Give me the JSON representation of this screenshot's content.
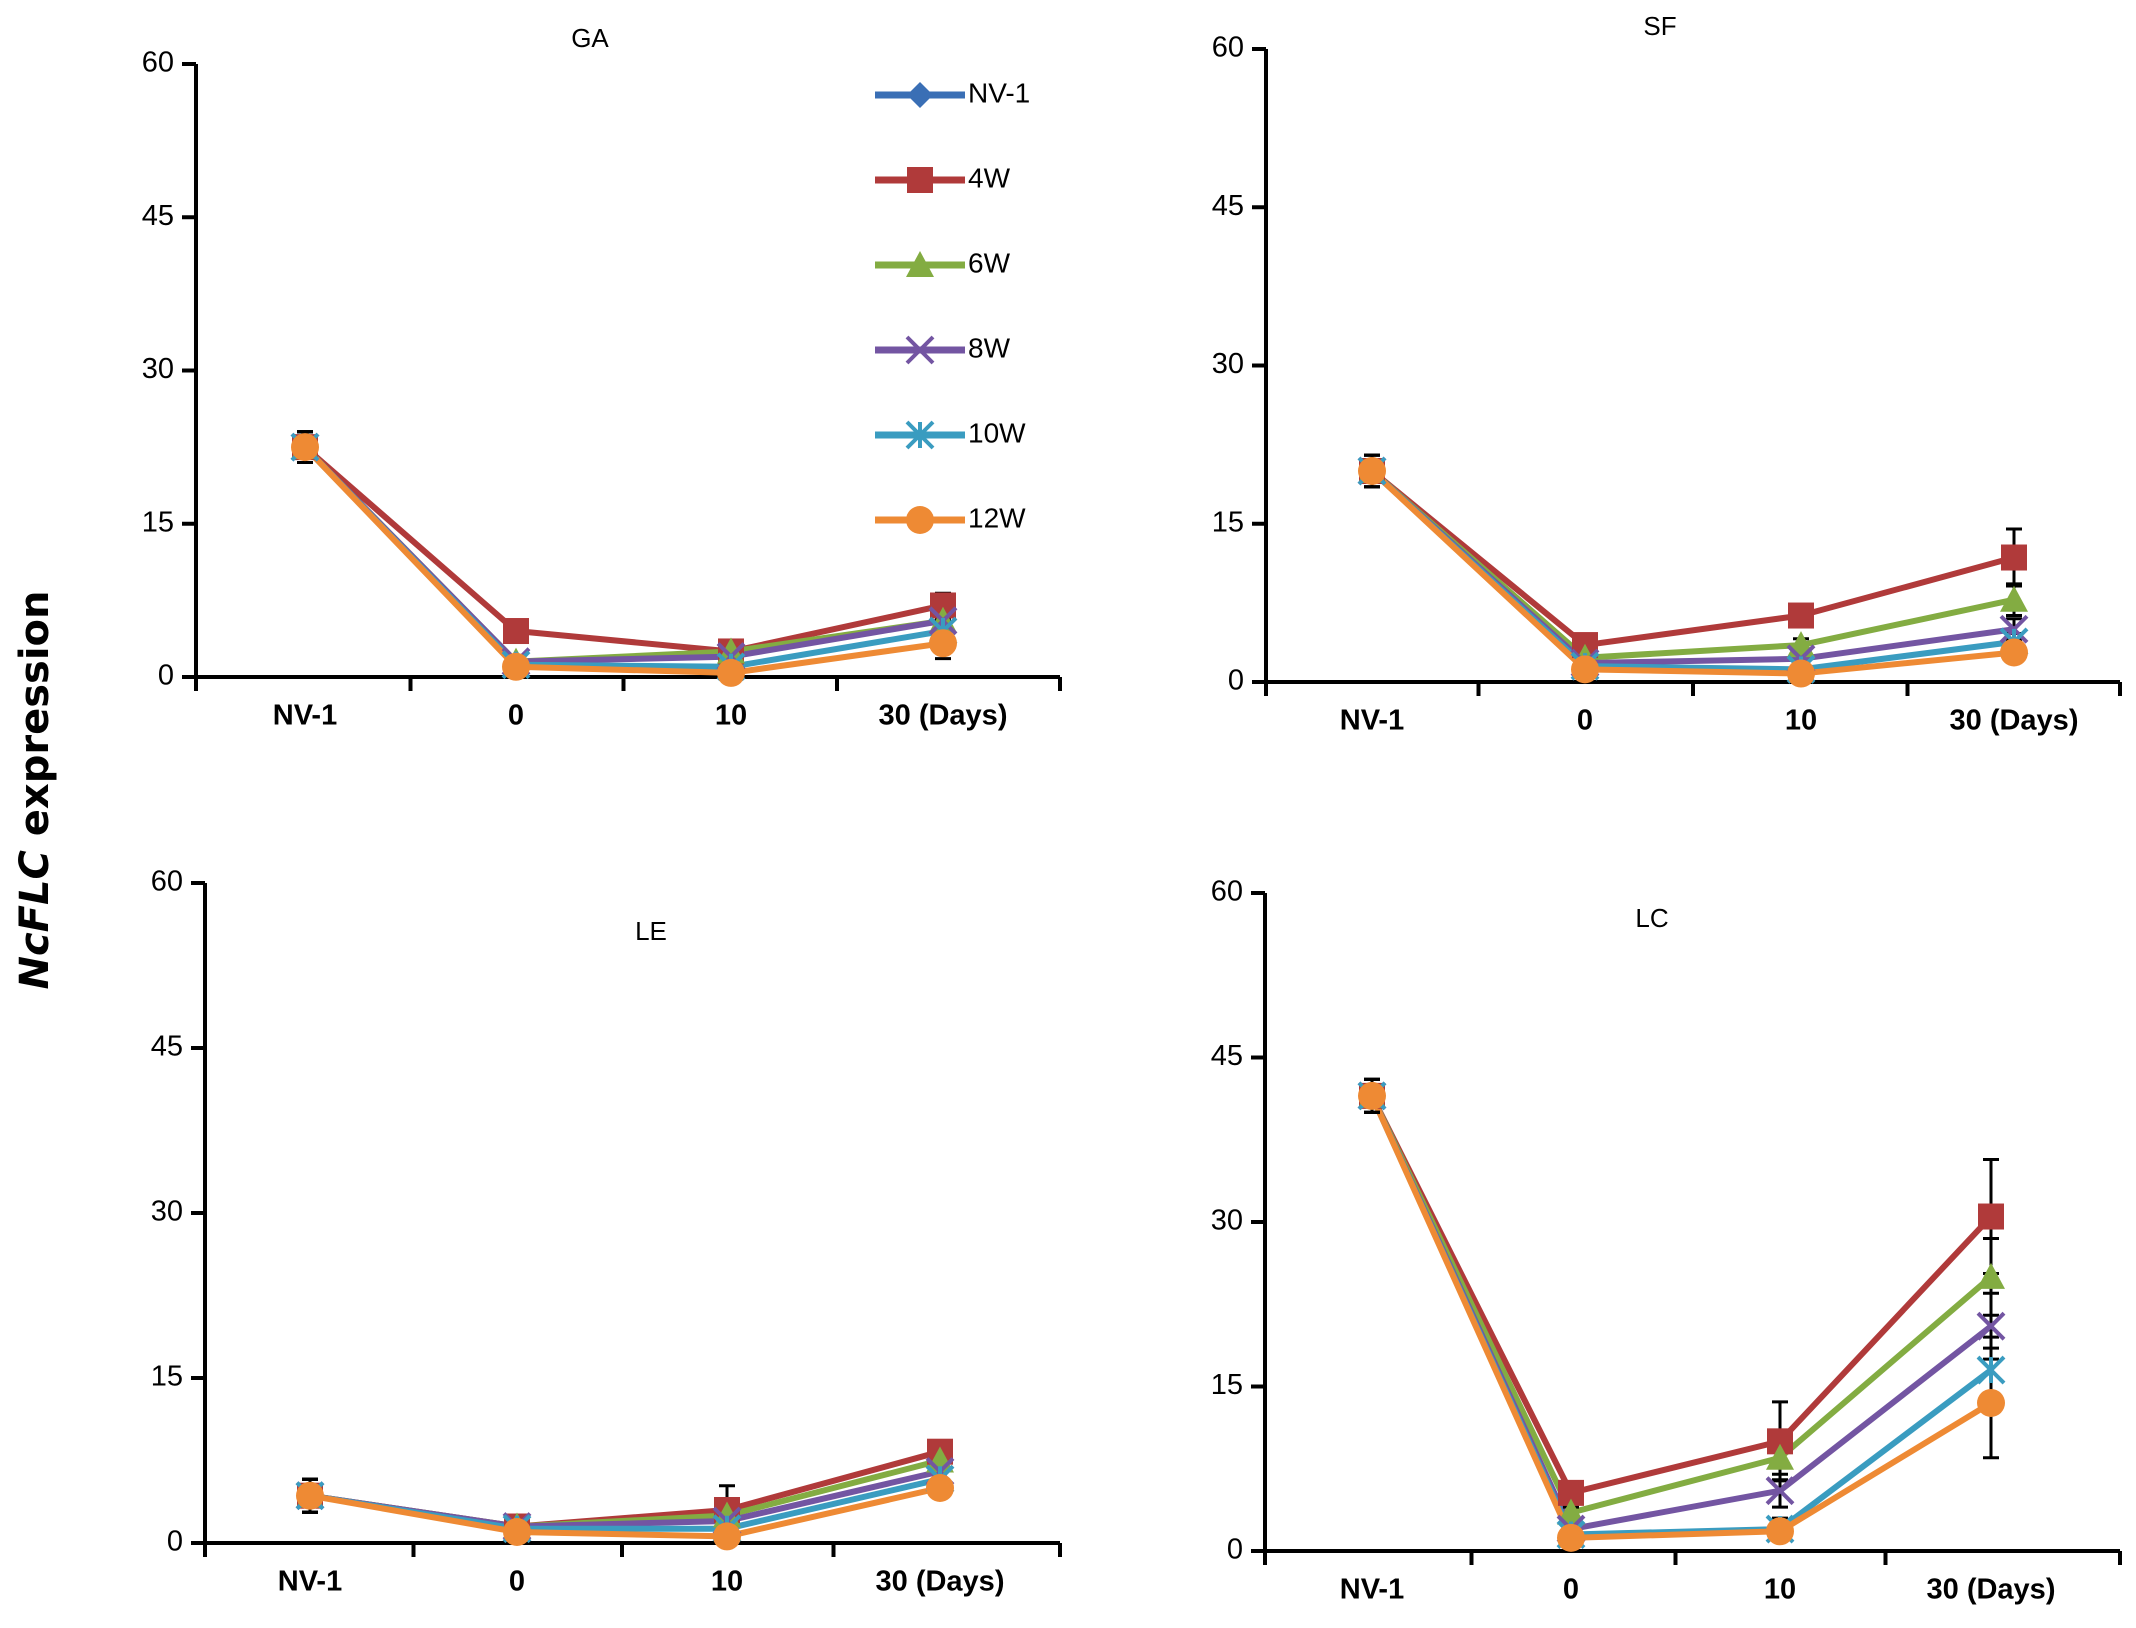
{
  "figure": {
    "y_axis_title_italic": "NcFLC",
    "y_axis_title_rest": " expression"
  },
  "chart_data": [
    {
      "type": "line",
      "title": "GA",
      "categories": [
        "NV-1",
        "0",
        "10",
        "30 (Days)"
      ],
      "xlabel": "",
      "ylabel": "NcFLC expression",
      "ylim": [
        0,
        60
      ],
      "yticks": [
        "0",
        "15",
        "30",
        "45",
        "60"
      ],
      "legend": "top-right",
      "series": [
        {
          "name": "NV-1",
          "values": [
            22.5,
            null,
            null,
            null
          ],
          "err": [
            1.5,
            null,
            null,
            null
          ]
        },
        {
          "name": "4W",
          "values": [
            22.5,
            4.5,
            2.5,
            7.0
          ],
          "err": [
            1.5,
            0.6,
            0.4,
            1.2
          ]
        },
        {
          "name": "6W",
          "values": [
            22.5,
            1.5,
            2.5,
            5.5
          ],
          "err": [
            1.5,
            0.3,
            0.4,
            1.0
          ]
        },
        {
          "name": "8W",
          "values": [
            22.5,
            1.5,
            2.0,
            5.5
          ],
          "err": [
            1.5,
            0.3,
            0.4,
            1.0
          ]
        },
        {
          "name": "10W",
          "values": [
            22.5,
            1.2,
            1.0,
            4.5
          ],
          "err": [
            1.5,
            0.3,
            0.3,
            1.0
          ]
        },
        {
          "name": "12W",
          "values": [
            22.5,
            1.0,
            0.4,
            3.3
          ],
          "err": [
            1.5,
            0.3,
            0.2,
            1.5
          ]
        }
      ]
    },
    {
      "type": "line",
      "title": "SF",
      "categories": [
        "NV-1",
        "0",
        "10",
        "30 (Days)"
      ],
      "xlabel": "",
      "ylabel": "NcFLC expression",
      "ylim": [
        0,
        60
      ],
      "yticks": [
        "0",
        "15",
        "30",
        "45",
        "60"
      ],
      "series": [
        {
          "name": "NV-1",
          "values": [
            20.0,
            null,
            null,
            null
          ],
          "err": [
            1.5,
            null,
            null,
            null
          ]
        },
        {
          "name": "4W",
          "values": [
            20.0,
            3.5,
            6.3,
            11.8
          ],
          "err": [
            1.5,
            0.6,
            0.8,
            2.7
          ]
        },
        {
          "name": "6W",
          "values": [
            20.0,
            2.3,
            3.5,
            7.8
          ],
          "err": [
            1.5,
            0.4,
            0.6,
            1.5
          ]
        },
        {
          "name": "8W",
          "values": [
            20.0,
            1.8,
            2.2,
            5.0
          ],
          "err": [
            1.5,
            0.3,
            0.4,
            1.0
          ]
        },
        {
          "name": "10W",
          "values": [
            20.0,
            1.5,
            1.2,
            3.8
          ],
          "err": [
            1.5,
            0.3,
            0.3,
            0.8
          ]
        },
        {
          "name": "12W",
          "values": [
            20.0,
            1.2,
            0.8,
            2.8
          ],
          "err": [
            1.5,
            0.3,
            0.2,
            0.8
          ]
        }
      ]
    },
    {
      "type": "line",
      "title": "LE",
      "categories": [
        "NV-1",
        "0",
        "10",
        "30 (Days)"
      ],
      "xlabel": "",
      "ylabel": "NcFLC expression",
      "ylim": [
        0,
        60
      ],
      "yticks": [
        "0",
        "15",
        "30",
        "45",
        "60"
      ],
      "series": [
        {
          "name": "NV-1",
          "values": [
            4.3,
            null,
            null,
            null
          ],
          "err": [
            1.5,
            null,
            null,
            null
          ]
        },
        {
          "name": "4W",
          "values": [
            4.3,
            1.5,
            3.0,
            8.3
          ],
          "err": [
            1.5,
            0.4,
            2.2,
            0.9
          ]
        },
        {
          "name": "6W",
          "values": [
            4.3,
            1.5,
            2.5,
            7.5
          ],
          "err": [
            1.5,
            0.4,
            0.8,
            0.9
          ]
        },
        {
          "name": "8W",
          "values": [
            4.3,
            1.5,
            2.0,
            6.5
          ],
          "err": [
            1.5,
            0.4,
            0.5,
            0.8
          ]
        },
        {
          "name": "10W",
          "values": [
            4.3,
            1.3,
            1.3,
            5.8
          ],
          "err": [
            1.5,
            0.4,
            0.4,
            0.8
          ]
        },
        {
          "name": "12W",
          "values": [
            4.3,
            1.0,
            0.6,
            5.0
          ],
          "err": [
            1.5,
            0.3,
            0.3,
            0.8
          ]
        }
      ]
    },
    {
      "type": "line",
      "title": "LC",
      "categories": [
        "NV-1",
        "0",
        "10",
        "30 (Days)"
      ],
      "xlabel": "",
      "ylabel": "NcFLC expression",
      "ylim": [
        0,
        60
      ],
      "yticks": [
        "0",
        "15",
        "30",
        "45",
        "60"
      ],
      "series": [
        {
          "name": "NV-1",
          "values": [
            41.5,
            null,
            null,
            null
          ],
          "err": [
            1.5,
            null,
            null,
            null
          ]
        },
        {
          "name": "4W",
          "values": [
            41.5,
            5.3,
            10.0,
            30.5
          ],
          "err": [
            1.5,
            0.6,
            3.6,
            5.2
          ]
        },
        {
          "name": "6W",
          "values": [
            41.5,
            3.5,
            8.5,
            25.0
          ],
          "err": [
            1.5,
            0.5,
            2.0,
            3.5
          ]
        },
        {
          "name": "8W",
          "values": [
            41.5,
            2.0,
            5.5,
            20.5
          ],
          "err": [
            1.5,
            0.4,
            1.5,
            3.0
          ]
        },
        {
          "name": "10W",
          "values": [
            41.5,
            1.5,
            2.0,
            16.5
          ],
          "err": [
            1.5,
            0.4,
            1.0,
            3.0
          ]
        },
        {
          "name": "12W",
          "values": [
            41.5,
            1.2,
            1.8,
            13.5
          ],
          "err": [
            1.5,
            0.3,
            0.5,
            5.0
          ]
        }
      ]
    }
  ],
  "series_styles": [
    {
      "name": "NV-1",
      "color": "#3A6FB5",
      "marker": "diamond"
    },
    {
      "name": "4W",
      "color": "#B03A3A",
      "marker": "square"
    },
    {
      "name": "6W",
      "color": "#83AC42",
      "marker": "triangle"
    },
    {
      "name": "8W",
      "color": "#7355A2",
      "marker": "x"
    },
    {
      "name": "10W",
      "color": "#3A9CC0",
      "marker": "star"
    },
    {
      "name": "12W",
      "color": "#EE8A34",
      "marker": "circle"
    }
  ]
}
